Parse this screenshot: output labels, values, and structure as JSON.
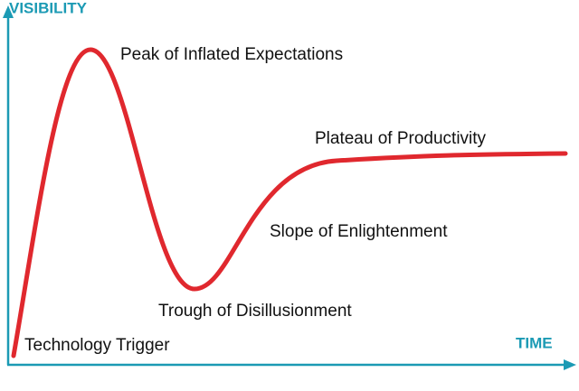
{
  "axes": {
    "y_label": "VISIBILITY",
    "x_label": "TIME"
  },
  "phases": [
    {
      "label": "Technology Trigger"
    },
    {
      "label": "Peak of Inflated Expectations"
    },
    {
      "label": "Trough of Disillusionment"
    },
    {
      "label": "Slope of Enlightenment"
    },
    {
      "label": "Plateau of Productivity"
    }
  ]
}
